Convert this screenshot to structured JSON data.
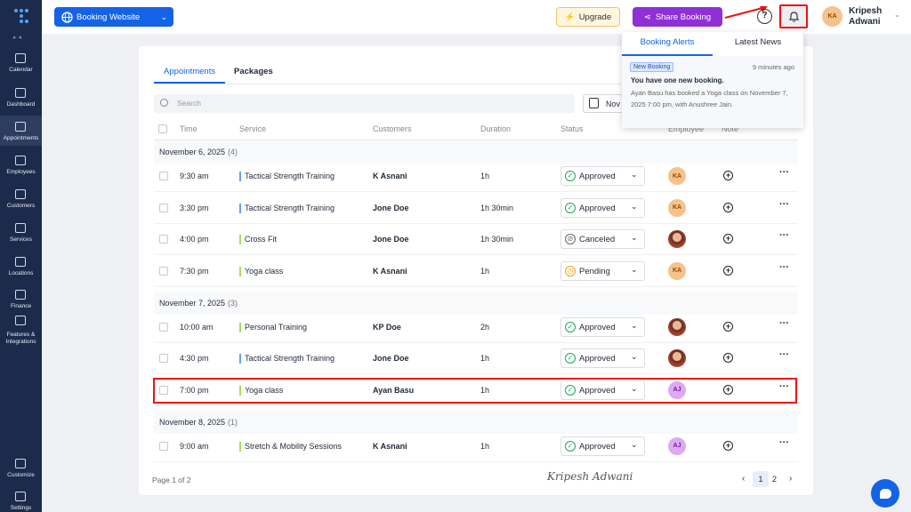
{
  "sidebar": {
    "items": [
      "Calendar",
      "Dashboard",
      "Appointments",
      "Employees",
      "Customers",
      "Services",
      "Locations",
      "Finance",
      "Features & Integrations",
      "Customize",
      "Settings"
    ]
  },
  "topbar": {
    "booking_website": "Booking Website",
    "upgrade": "Upgrade",
    "share": "Share Booking",
    "user": {
      "initials": "KA",
      "name": "Kripesh Adwani"
    }
  },
  "tabs": [
    "Appointments",
    "Packages"
  ],
  "search": "Search",
  "date_button": "Nov",
  "table": {
    "headers": [
      "Time",
      "Service",
      "Customers",
      "Duration",
      "Status",
      "Employee",
      "Note"
    ],
    "groups": [
      {
        "date": "November 6, 2025",
        "count": "(4)",
        "rows": [
          {
            "time": "9:30 am",
            "service": "Tactical Strength Training",
            "color": "#6b9bf2",
            "customer": "K Asnani",
            "duration": "1h",
            "status": "Approved",
            "employee": "KA"
          },
          {
            "time": "3:30 pm",
            "service": "Tactical Strength Training",
            "color": "#6b9bf2",
            "customer": "Jone Doe",
            "duration": "1h 30min",
            "status": "Approved",
            "employee": "KA"
          },
          {
            "time": "4:00 pm",
            "service": "Cross Fit",
            "color": "#a6dd5f",
            "customer": "Jone Doe",
            "duration": "1h 30min",
            "status": "Canceled"
          },
          {
            "time": "7:30 pm",
            "service": "Yoga class",
            "color": "#a6dd5f",
            "customer": "K Asnani",
            "duration": "1h",
            "status": "Pending",
            "employee": "KA"
          }
        ]
      },
      {
        "date": "November 7, 2025",
        "count": "(3)",
        "rows": [
          {
            "time": "10:00 am",
            "service": "Personal Training",
            "color": "#a6dd5f",
            "customer": "KP Doe",
            "duration": "2h",
            "status": "Approved"
          },
          {
            "time": "4:30 pm",
            "service": "Tactical Strength Training",
            "color": "#6b9bf2",
            "customer": "Jone Doe",
            "duration": "1h",
            "status": "Approved"
          },
          {
            "time": "7:00 pm",
            "service": "Yoga class",
            "color": "#a6dd5f",
            "customer": "Ayan Basu",
            "duration": "1h",
            "status": "Approved",
            "employee": "AJ"
          }
        ]
      },
      {
        "date": "November 8, 2025",
        "count": "(1)",
        "rows": [
          {
            "time": "9:00 am",
            "service": "Stretch & Mobility Sessions",
            "color": "#a6dd5f",
            "customer": "K Asnani",
            "duration": "1h",
            "status": "Approved",
            "employee": "AJ"
          }
        ]
      }
    ]
  },
  "footer": {
    "page": "Page 1 of 2",
    "signature": "Kripesh Adwani",
    "pages": [
      "1",
      "2"
    ]
  },
  "popup": {
    "tabs": [
      "Booking Alerts",
      "Latest News"
    ],
    "badge": "New Booking",
    "time": "9 minutes ago",
    "title": "You have one new booking.",
    "body": "Ayan Basu has booked a Yoga class on November 7, 2025 7:00 pm, with Anushree Jain."
  }
}
